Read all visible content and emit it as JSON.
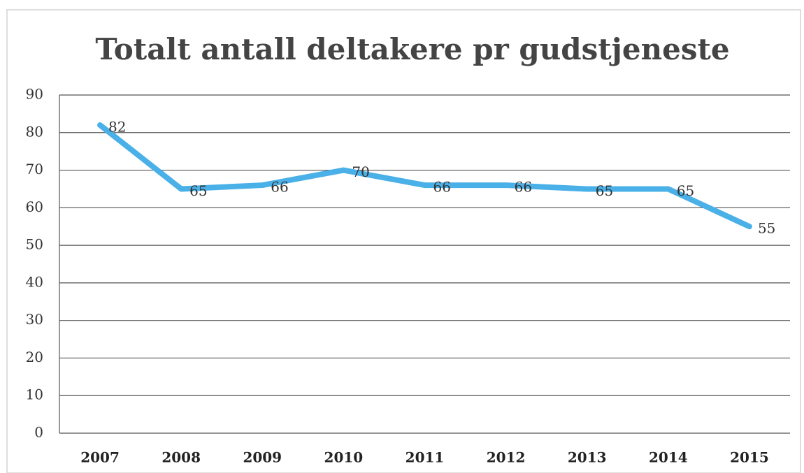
{
  "chart_data": {
    "type": "line",
    "title": "Totalt antall deltakere pr gudstjeneste",
    "categories": [
      "2007",
      "2008",
      "2009",
      "2010",
      "2011",
      "2012",
      "2013",
      "2014",
      "2015"
    ],
    "series": [
      {
        "name": "Totalt antall deltakere",
        "color": "#4ab0e8",
        "values": [
          82,
          65,
          66,
          70,
          66,
          66,
          65,
          65,
          55
        ]
      }
    ],
    "ylim": [
      0,
      90
    ],
    "yticks": [
      0,
      10,
      20,
      30,
      40,
      50,
      60,
      70,
      80,
      90
    ],
    "grid": true
  }
}
